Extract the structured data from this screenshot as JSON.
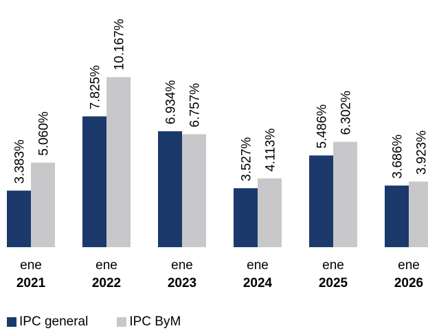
{
  "colors": {
    "general": "#1b3a6b",
    "bym": "#c8c8ca"
  },
  "chart_data": {
    "type": "bar",
    "title": "",
    "xlabel": "",
    "ylabel": "",
    "categories": [
      {
        "month": "ene",
        "year": "2021"
      },
      {
        "month": "ene",
        "year": "2022"
      },
      {
        "month": "ene",
        "year": "2023"
      },
      {
        "month": "ene",
        "year": "2024"
      },
      {
        "month": "ene",
        "year": "2025"
      },
      {
        "month": "ene",
        "year": "2026"
      }
    ],
    "series": [
      {
        "name": "IPC general",
        "values": [
          3.383,
          7.825,
          6.934,
          3.527,
          5.486,
          3.686
        ],
        "labels": [
          "3.383%",
          "7.825%",
          "6.934%",
          "3.527%",
          "5.486%",
          "3.686%"
        ]
      },
      {
        "name": "IPC ByM",
        "values": [
          5.06,
          10.167,
          6.757,
          4.113,
          6.302,
          3.923
        ],
        "labels": [
          "5.060%",
          "10.167%",
          "6.757%",
          "4.113%",
          "6.302%",
          "3.923%"
        ]
      }
    ],
    "ylim": [
      0,
      11
    ],
    "grid": false,
    "legend": "bottom-left"
  }
}
